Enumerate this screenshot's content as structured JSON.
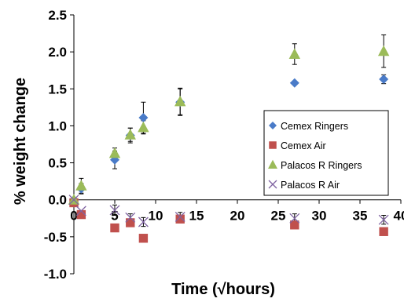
{
  "chart_data": {
    "type": "scatter",
    "xlabel": "Time (√hours)",
    "ylabel": "% weight change",
    "xlim": [
      0,
      40
    ],
    "ylim": [
      -1.0,
      2.5
    ],
    "xticks": [
      0,
      5,
      10,
      15,
      20,
      25,
      30,
      35,
      40
    ],
    "yticks": [
      -1.0,
      -0.5,
      0.0,
      0.5,
      1.0,
      1.5,
      2.0,
      2.5
    ],
    "x_tick_labels": [
      "0",
      "5",
      "10",
      "15",
      "20",
      "25",
      "30",
      "35",
      "40"
    ],
    "y_tick_labels": [
      "-1.0",
      "-0.5",
      "0.0",
      "0.5",
      "1.0",
      "1.5",
      "2.0",
      "2.5"
    ],
    "legend_position": "right",
    "grid": false,
    "series": [
      {
        "name": "Cemex Ringers",
        "marker": "diamond",
        "color": "#4a7bc8",
        "x": [
          0,
          0.9,
          5,
          6.9,
          8.5,
          13,
          27,
          37.9
        ],
        "y": [
          0.0,
          0.15,
          0.54,
          0.87,
          1.11,
          1.32,
          1.58,
          1.63
        ],
        "err": [
          0.0,
          0.07,
          0.12,
          0.1,
          0.21,
          0.18,
          0.0,
          0.06
        ]
      },
      {
        "name": "Cemex Air",
        "marker": "square",
        "color": "#c0504d",
        "x": [
          0,
          0.9,
          5,
          6.9,
          8.5,
          13,
          27,
          37.9
        ],
        "y": [
          -0.04,
          -0.2,
          -0.38,
          -0.31,
          -0.52,
          -0.26,
          -0.34,
          -0.43
        ],
        "err": [
          0.0,
          0.0,
          0.0,
          0.0,
          0.0,
          0.0,
          0.0,
          0.0
        ]
      },
      {
        "name": "Palacos R Ringers",
        "marker": "triangle",
        "color": "#9bbb59",
        "x": [
          0,
          0.9,
          5,
          6.9,
          8.5,
          13,
          27,
          37.9
        ],
        "y": [
          0.0,
          0.19,
          0.63,
          0.88,
          0.98,
          1.33,
          1.97,
          2.01
        ],
        "err": [
          0.0,
          0.1,
          0.07,
          0.09,
          0.09,
          0.18,
          0.14,
          0.22
        ]
      },
      {
        "name": "Palacos R Air",
        "marker": "x",
        "color": "#8064a2",
        "x": [
          0,
          0.9,
          5,
          6.9,
          8.5,
          13,
          27,
          37.9
        ],
        "y": [
          0.0,
          -0.15,
          -0.14,
          -0.24,
          -0.3,
          -0.23,
          -0.25,
          -0.27
        ],
        "err": [
          0.0,
          0.0,
          0.07,
          0.05,
          0.06,
          0.06,
          0.06,
          0.06
        ]
      }
    ]
  }
}
